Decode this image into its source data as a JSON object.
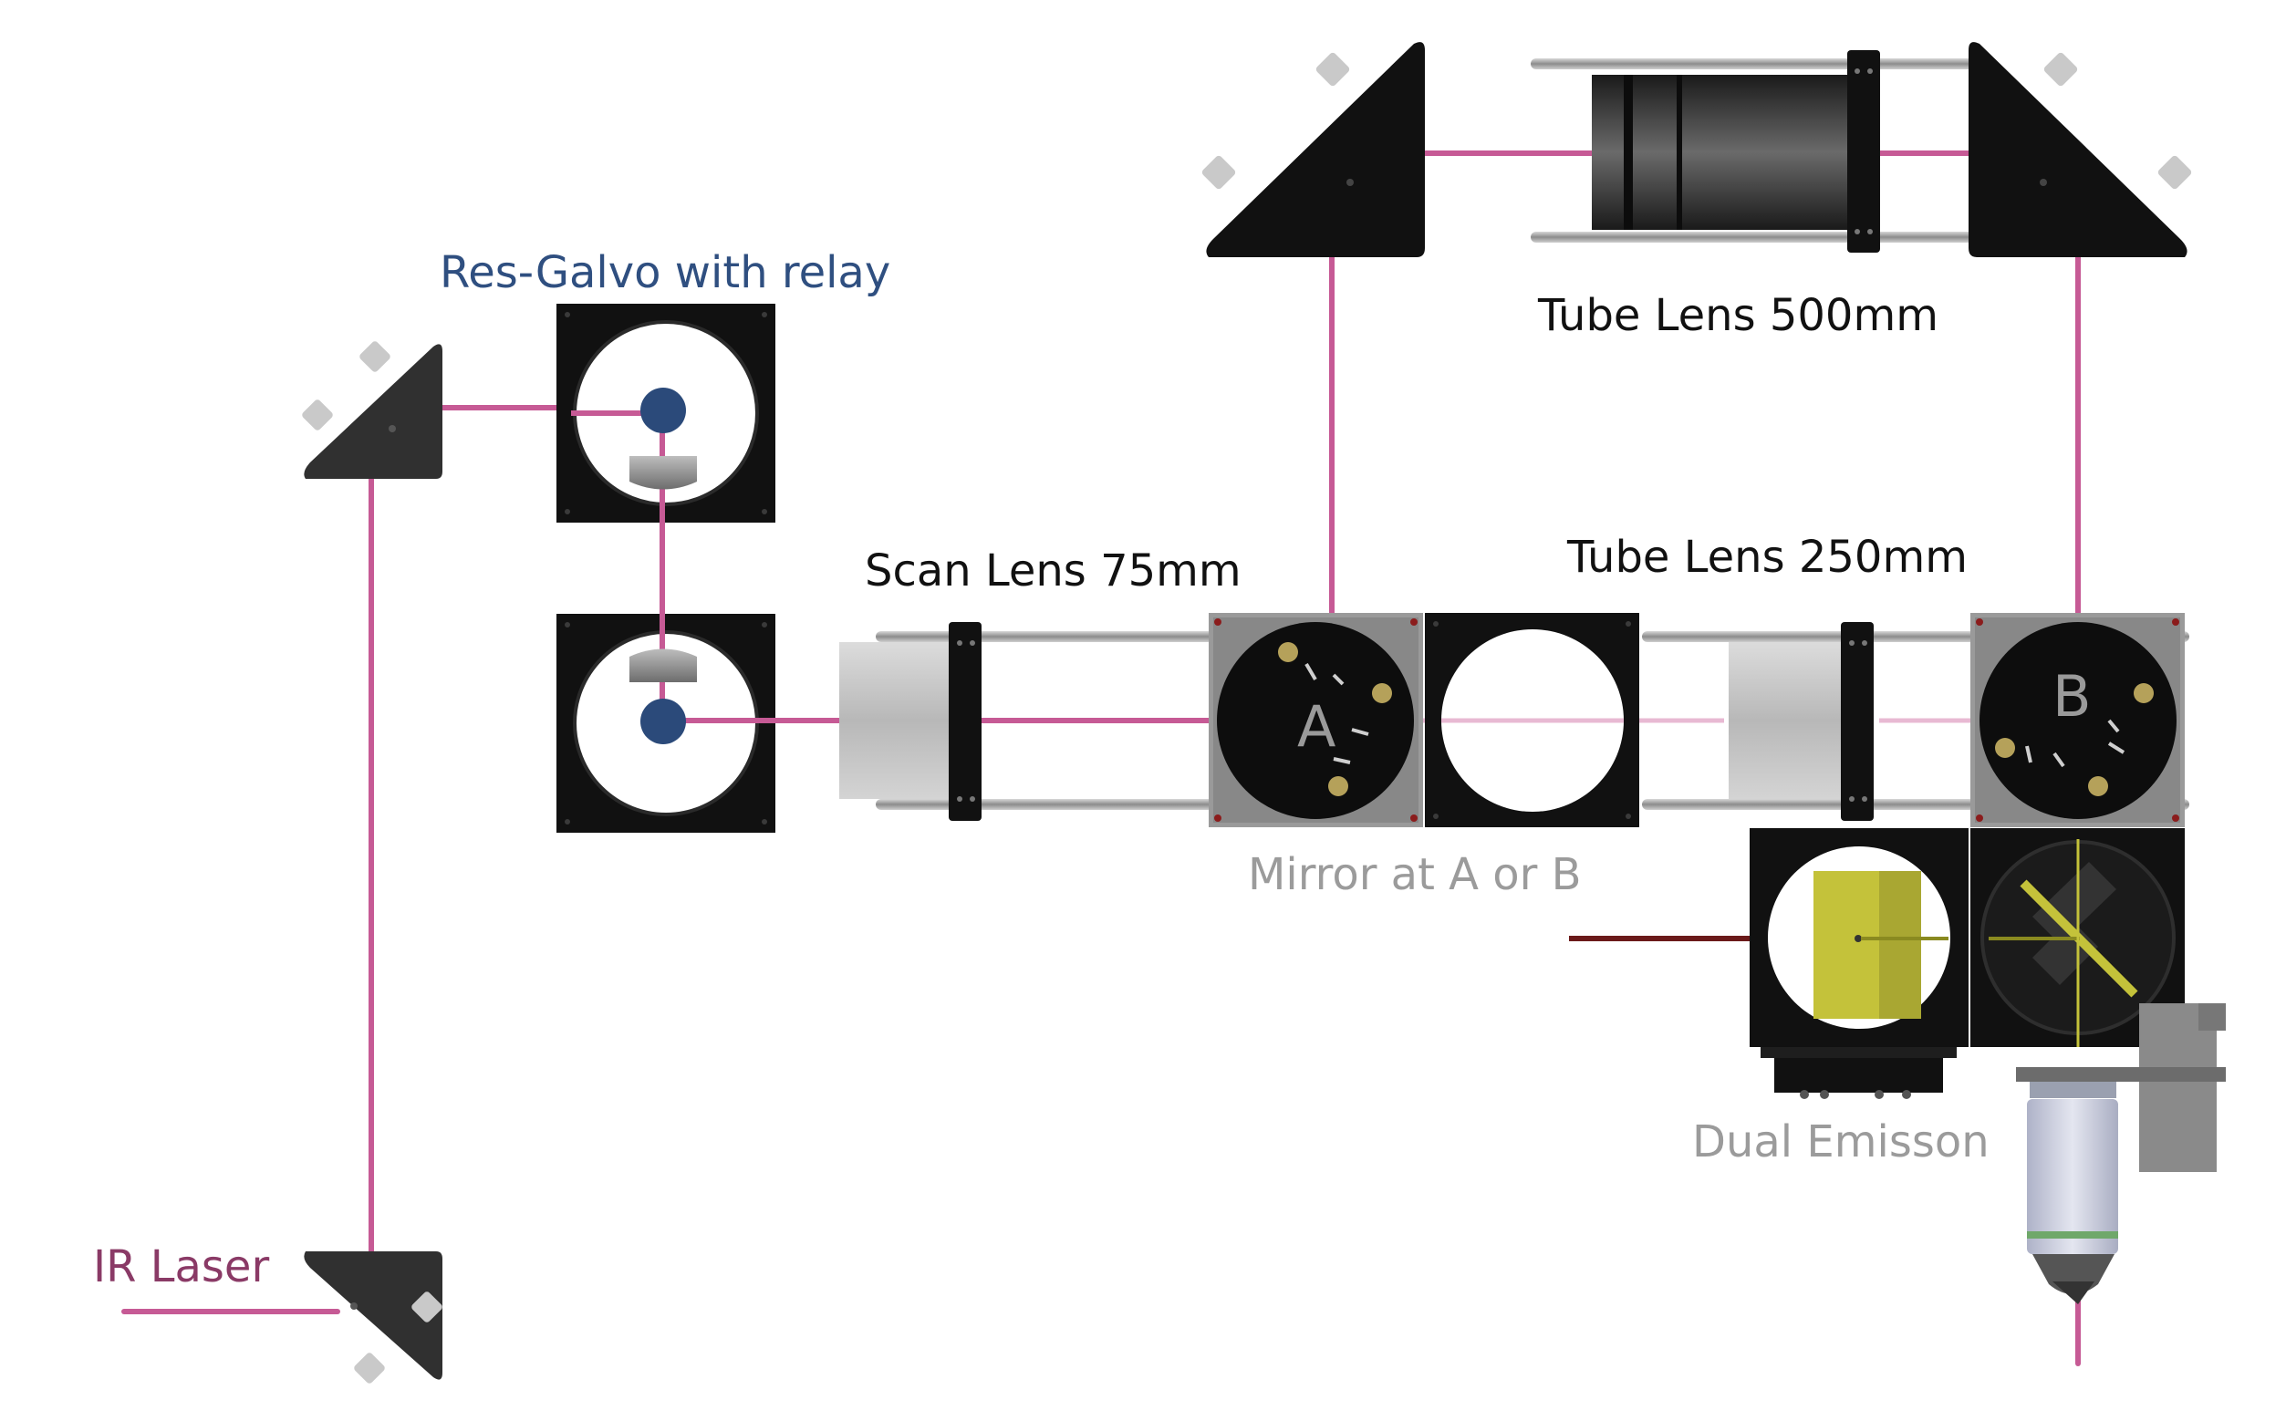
{
  "labels": {
    "res_galvo": "Res-Galvo with relay",
    "scan_lens": "Scan Lens 75mm",
    "tube_lens_500": "Tube Lens 500mm",
    "tube_lens_250": "Tube Lens 250mm",
    "mirror_ab": "Mirror at A or B",
    "dual_emission": "Dual Emisson",
    "ir_laser": "IR Laser"
  },
  "markers": {
    "a": "A",
    "b": "B"
  },
  "colors": {
    "beam": "#c65a95",
    "beam_faint": "#e8b9d3",
    "emission_beam": "#6b1a1a",
    "label_blue": "#2f4f80",
    "label_gray": "#9b9b9b",
    "label_laser": "#8a3a66",
    "mount_black": "#111111",
    "rail_gray": "#a8a8a8",
    "galvo_blue": "#2b4a7a",
    "filter_yellow": "#c4c23a",
    "objective_lavender": "#c9cde0",
    "objective_green": "#6fa86a"
  }
}
